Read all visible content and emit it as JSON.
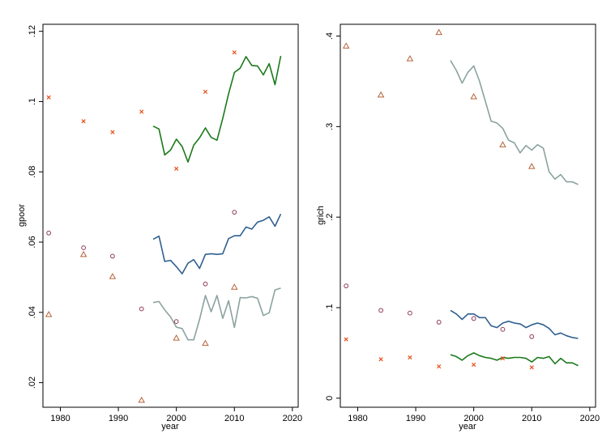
{
  "colors": {
    "green": "#1a7a1a",
    "blue": "#2f5f8f",
    "sage": "#8aa39f",
    "marker_orange": "#e8501a",
    "marker_purple": "#8e3a5a",
    "marker_brown": "#b5643a"
  },
  "chart_data": [
    {
      "type": "line",
      "xlabel": "year",
      "ylabel": "gpoor",
      "xlim": [
        1977,
        2021
      ],
      "ylim": [
        0.013,
        0.122
      ],
      "xticks": [
        1980,
        1990,
        2000,
        2010,
        2020
      ],
      "yticks": [
        0.02,
        0.04,
        0.06,
        0.08,
        0.1,
        0.12
      ],
      "ytick_labels": [
        ".02",
        ".04",
        ".06",
        ".08",
        ".1",
        ".12"
      ],
      "grid": false,
      "lines": [
        {
          "color": "green",
          "x": [
            1996,
            1997,
            1998,
            1999,
            2000,
            2001,
            2002,
            2003,
            2004,
            2005,
            2006,
            2007,
            2008,
            2009,
            2010,
            2011,
            2012,
            2013,
            2014,
            2015,
            2016,
            2017,
            2018
          ],
          "y": [
            0.093,
            0.0922,
            0.0848,
            0.0862,
            0.0893,
            0.0872,
            0.0828,
            0.0876,
            0.0897,
            0.0925,
            0.0898,
            0.089,
            0.0952,
            0.1022,
            0.1083,
            0.1095,
            0.1128,
            0.1103,
            0.1101,
            0.1076,
            0.1108,
            0.1048,
            0.113
          ]
        },
        {
          "color": "blue",
          "x": [
            1996,
            1997,
            1998,
            1999,
            2000,
            2001,
            2002,
            2003,
            2004,
            2005,
            2006,
            2007,
            2008,
            2009,
            2010,
            2011,
            2012,
            2013,
            2014,
            2015,
            2016,
            2017,
            2018
          ],
          "y": [
            0.0608,
            0.0617,
            0.0545,
            0.0548,
            0.053,
            0.051,
            0.054,
            0.055,
            0.0525,
            0.0565,
            0.0567,
            0.0565,
            0.0567,
            0.061,
            0.0618,
            0.0618,
            0.0643,
            0.0637,
            0.0657,
            0.0662,
            0.0672,
            0.0645,
            0.068
          ]
        },
        {
          "color": "sage",
          "x": [
            1996,
            1997,
            1998,
            1999,
            2000,
            2001,
            2002,
            2003,
            2004,
            2005,
            2006,
            2007,
            2008,
            2009,
            2010,
            2011,
            2012,
            2013,
            2014,
            2015,
            2016,
            2017,
            2018
          ],
          "y": [
            0.0428,
            0.0431,
            0.0407,
            0.0387,
            0.0358,
            0.0354,
            0.0322,
            0.0322,
            0.038,
            0.0448,
            0.0402,
            0.0448,
            0.0383,
            0.0433,
            0.0357,
            0.0442,
            0.0441,
            0.0445,
            0.044,
            0.0391,
            0.0399,
            0.0464,
            0.0469
          ]
        }
      ],
      "markers": [
        {
          "marker": "x",
          "color": "marker_orange",
          "x": [
            1978,
            1984,
            1989,
            1994,
            2000,
            2005,
            2010
          ],
          "y": [
            0.1012,
            0.0944,
            0.0913,
            0.0971,
            0.0809,
            0.1028,
            0.114
          ]
        },
        {
          "marker": "o",
          "color": "marker_purple",
          "x": [
            1978,
            1984,
            1989,
            1994,
            2000,
            2005,
            2010
          ],
          "y": [
            0.0626,
            0.0584,
            0.056,
            0.041,
            0.0374,
            0.0481,
            0.0685
          ]
        },
        {
          "marker": "triangle",
          "color": "marker_brown",
          "x": [
            1978,
            1984,
            1989,
            1994,
            2000,
            2005,
            2010
          ],
          "y": [
            0.0394,
            0.0565,
            0.0502,
            0.015,
            0.0327,
            0.0312,
            0.0472
          ]
        }
      ]
    },
    {
      "type": "line",
      "xlabel": "year",
      "ylabel": "grich",
      "xlim": [
        1977,
        2021
      ],
      "ylim": [
        -0.01,
        0.413
      ],
      "xticks": [
        1980,
        1990,
        2000,
        2010,
        2020
      ],
      "yticks": [
        0,
        0.1,
        0.2,
        0.3,
        0.4
      ],
      "ytick_labels": [
        "0",
        ".1",
        ".2",
        ".3",
        ".4"
      ],
      "grid": false,
      "lines": [
        {
          "color": "sage",
          "x": [
            1996,
            1997,
            1998,
            1999,
            2000,
            2001,
            2002,
            2003,
            2004,
            2005,
            2006,
            2007,
            2008,
            2009,
            2010,
            2011,
            2012,
            2013,
            2014,
            2015,
            2016,
            2017,
            2018
          ],
          "y": [
            0.373,
            0.362,
            0.348,
            0.36,
            0.367,
            0.35,
            0.328,
            0.306,
            0.304,
            0.298,
            0.285,
            0.282,
            0.271,
            0.279,
            0.274,
            0.28,
            0.276,
            0.25,
            0.242,
            0.247,
            0.239,
            0.239,
            0.236
          ]
        },
        {
          "color": "blue",
          "x": [
            1996,
            1997,
            1998,
            1999,
            2000,
            2001,
            2002,
            2003,
            2004,
            2005,
            2006,
            2007,
            2008,
            2009,
            2010,
            2011,
            2012,
            2013,
            2014,
            2015,
            2016,
            2017,
            2018
          ],
          "y": [
            0.097,
            0.093,
            0.087,
            0.093,
            0.093,
            0.089,
            0.089,
            0.08,
            0.078,
            0.083,
            0.085,
            0.083,
            0.082,
            0.078,
            0.081,
            0.083,
            0.081,
            0.077,
            0.07,
            0.072,
            0.069,
            0.067,
            0.066
          ]
        },
        {
          "color": "green",
          "x": [
            1996,
            1997,
            1998,
            1999,
            2000,
            2001,
            2002,
            2003,
            2004,
            2005,
            2006,
            2007,
            2008,
            2009,
            2010,
            2011,
            2012,
            2013,
            2014,
            2015,
            2016,
            2017,
            2018
          ],
          "y": [
            0.048,
            0.046,
            0.042,
            0.047,
            0.05,
            0.047,
            0.045,
            0.044,
            0.042,
            0.045,
            0.044,
            0.045,
            0.045,
            0.044,
            0.04,
            0.045,
            0.044,
            0.046,
            0.038,
            0.044,
            0.039,
            0.039,
            0.036
          ]
        }
      ],
      "markers": [
        {
          "marker": "triangle",
          "color": "marker_brown",
          "x": [
            1978,
            1984,
            1989,
            1994,
            2000,
            2005,
            2010
          ],
          "y": [
            0.389,
            0.335,
            0.375,
            0.404,
            0.333,
            0.28,
            0.256
          ]
        },
        {
          "marker": "o",
          "color": "marker_purple",
          "x": [
            1978,
            1984,
            1989,
            1994,
            2000,
            2005,
            2010
          ],
          "y": [
            0.124,
            0.097,
            0.094,
            0.084,
            0.088,
            0.076,
            0.068
          ]
        },
        {
          "marker": "x",
          "color": "marker_orange",
          "x": [
            1978,
            1984,
            1989,
            1994,
            2000,
            2005,
            2010
          ],
          "y": [
            0.065,
            0.043,
            0.045,
            0.035,
            0.037,
            0.044,
            0.034
          ]
        }
      ]
    }
  ]
}
